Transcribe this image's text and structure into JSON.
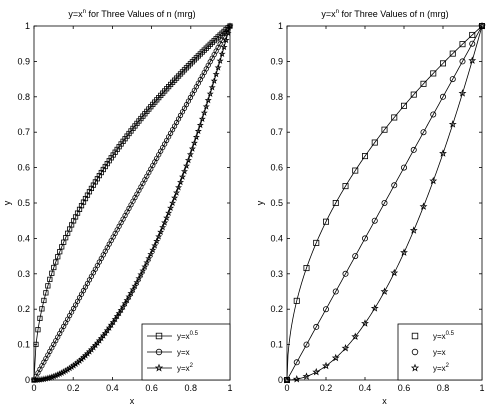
{
  "chart_data": [
    {
      "type": "line",
      "title": {
        "base": "y=x",
        "sup": "n",
        "rest": " for Three Values of n (mrg)"
      },
      "xlabel": "x",
      "ylabel": "y",
      "xlim": [
        0,
        1
      ],
      "ylim": [
        0,
        1
      ],
      "xticks": [
        "0",
        "0.2",
        "0.4",
        "0.6",
        "0.8",
        "1"
      ],
      "yticks": [
        "0",
        "0.1",
        "0.2",
        "0.3",
        "0.4",
        "0.5",
        "0.6",
        "0.7",
        "0.8",
        "0.9",
        "1"
      ],
      "grid": false,
      "legend": "bottom-right",
      "x": [
        0,
        0.0101,
        0.0202,
        0.0303,
        0.0404,
        0.0505,
        0.0606,
        0.0707,
        0.0808,
        0.0909,
        0.101,
        0.1111,
        0.1212,
        0.1313,
        0.1414,
        0.1515,
        0.1616,
        0.1717,
        0.1818,
        0.1919,
        0.202,
        0.2121,
        0.2222,
        0.2323,
        0.2424,
        0.2525,
        0.2626,
        0.2727,
        0.2828,
        0.2929,
        0.303,
        0.3131,
        0.3232,
        0.3333,
        0.3434,
        0.3535,
        0.3636,
        0.3737,
        0.3838,
        0.3939,
        0.404,
        0.4141,
        0.4242,
        0.4343,
        0.4444,
        0.4545,
        0.4646,
        0.4747,
        0.4848,
        0.4949,
        0.5051,
        0.5152,
        0.5253,
        0.5354,
        0.5455,
        0.5556,
        0.5657,
        0.5758,
        0.5859,
        0.596,
        0.6061,
        0.6162,
        0.6263,
        0.6364,
        0.6465,
        0.6566,
        0.6667,
        0.6768,
        0.6869,
        0.697,
        0.7071,
        0.7172,
        0.7273,
        0.7374,
        0.7475,
        0.7576,
        0.7677,
        0.7778,
        0.7879,
        0.798,
        0.8081,
        0.8182,
        0.8283,
        0.8384,
        0.8485,
        0.8586,
        0.8687,
        0.8788,
        0.8889,
        0.899,
        0.9091,
        0.9192,
        0.9293,
        0.9394,
        0.9495,
        0.9596,
        0.9697,
        0.9798,
        0.9899,
        1
      ],
      "series": [
        {
          "name": "y=x",
          "sup": "0.5",
          "marker": "square",
          "y": [
            0,
            0.1005,
            0.1421,
            0.1741,
            0.201,
            0.2247,
            0.2462,
            0.2659,
            0.2843,
            0.3015,
            0.3178,
            0.3333,
            0.3482,
            0.3624,
            0.3761,
            0.3892,
            0.402,
            0.4144,
            0.4264,
            0.4381,
            0.4495,
            0.4606,
            0.4714,
            0.482,
            0.4924,
            0.5025,
            0.5125,
            0.5222,
            0.5318,
            0.5412,
            0.5505,
            0.5596,
            0.5685,
            0.5774,
            0.586,
            0.5946,
            0.603,
            0.6113,
            0.6195,
            0.6276,
            0.6356,
            0.6435,
            0.6513,
            0.659,
            0.6667,
            0.6742,
            0.6816,
            0.689,
            0.6963,
            0.7035,
            0.7107,
            0.7177,
            0.7248,
            0.7317,
            0.7386,
            0.7454,
            0.7521,
            0.7588,
            0.7654,
            0.772,
            0.7785,
            0.785,
            0.7914,
            0.7977,
            0.804,
            0.8103,
            0.8165,
            0.8227,
            0.8288,
            0.8349,
            0.8409,
            0.8469,
            0.8528,
            0.8587,
            0.8646,
            0.8704,
            0.8762,
            0.8819,
            0.8876,
            0.8933,
            0.8989,
            0.9045,
            0.9101,
            0.9156,
            0.9211,
            0.9266,
            0.932,
            0.9374,
            0.9428,
            0.9482,
            0.9535,
            0.9588,
            0.964,
            0.9692,
            0.9744,
            0.9796,
            0.9847,
            0.9899,
            0.9949,
            1
          ]
        },
        {
          "name": "y=x",
          "sup": "",
          "marker": "circle",
          "y": [
            0,
            0.0101,
            0.0202,
            0.0303,
            0.0404,
            0.0505,
            0.0606,
            0.0707,
            0.0808,
            0.0909,
            0.101,
            0.1111,
            0.1212,
            0.1313,
            0.1414,
            0.1515,
            0.1616,
            0.1717,
            0.1818,
            0.1919,
            0.202,
            0.2121,
            0.2222,
            0.2323,
            0.2424,
            0.2525,
            0.2626,
            0.2727,
            0.2828,
            0.2929,
            0.303,
            0.3131,
            0.3232,
            0.3333,
            0.3434,
            0.3535,
            0.3636,
            0.3737,
            0.3838,
            0.3939,
            0.404,
            0.4141,
            0.4242,
            0.4343,
            0.4444,
            0.4545,
            0.4646,
            0.4747,
            0.4848,
            0.4949,
            0.5051,
            0.5152,
            0.5253,
            0.5354,
            0.5455,
            0.5556,
            0.5657,
            0.5758,
            0.5859,
            0.596,
            0.6061,
            0.6162,
            0.6263,
            0.6364,
            0.6465,
            0.6566,
            0.6667,
            0.6768,
            0.6869,
            0.697,
            0.7071,
            0.7172,
            0.7273,
            0.7374,
            0.7475,
            0.7576,
            0.7677,
            0.7778,
            0.7879,
            0.798,
            0.8081,
            0.8182,
            0.8283,
            0.8384,
            0.8485,
            0.8586,
            0.8687,
            0.8788,
            0.8889,
            0.899,
            0.9091,
            0.9192,
            0.9293,
            0.9394,
            0.9495,
            0.9596,
            0.9697,
            0.9798,
            0.9899,
            1
          ]
        },
        {
          "name": "y=x",
          "sup": "2",
          "marker": "star",
          "y": [
            0,
            0.0001,
            0.0004,
            0.0009,
            0.0016,
            0.0026,
            0.0037,
            0.005,
            0.0065,
            0.0083,
            0.0102,
            0.0123,
            0.0147,
            0.0172,
            0.02,
            0.023,
            0.0261,
            0.0295,
            0.0331,
            0.0368,
            0.0408,
            0.045,
            0.0494,
            0.054,
            0.0588,
            0.0638,
            0.069,
            0.0744,
            0.08,
            0.0858,
            0.0918,
            0.098,
            0.1045,
            0.1111,
            0.1179,
            0.125,
            0.1322,
            0.1397,
            0.1473,
            0.1552,
            0.1632,
            0.1715,
            0.18,
            0.1886,
            0.1975,
            0.2066,
            0.2159,
            0.2254,
            0.235,
            0.2449,
            0.2551,
            0.2654,
            0.2759,
            0.2866,
            0.2975,
            0.3086,
            0.32,
            0.3315,
            0.3433,
            0.3552,
            0.3673,
            0.3797,
            0.3922,
            0.405,
            0.4179,
            0.4311,
            0.4444,
            0.458,
            0.4718,
            0.4858,
            0.5,
            0.5144,
            0.5289,
            0.5437,
            0.5587,
            0.5739,
            0.5894,
            0.605,
            0.6208,
            0.6369,
            0.6531,
            0.6694,
            0.686,
            0.7029,
            0.7199,
            0.7372,
            0.7546,
            0.7723,
            0.7901,
            0.8082,
            0.8264,
            0.8449,
            0.8636,
            0.8825,
            0.9015,
            0.9208,
            0.9403,
            0.96,
            0.9799,
            1
          ]
        }
      ]
    },
    {
      "type": "line",
      "title": {
        "base": "y=x",
        "sup": "n",
        "rest": " for Three Values of n (mrg)"
      },
      "xlabel": "x",
      "ylabel": "y",
      "xlim": [
        0,
        1
      ],
      "ylim": [
        0,
        1
      ],
      "xticks": [
        "0",
        "0.2",
        "0.4",
        "0.6",
        "0.8",
        "1"
      ],
      "yticks": [
        "0",
        "0.1",
        "0.2",
        "0.3",
        "0.4",
        "0.5",
        "0.6",
        "0.7",
        "0.8",
        "0.9",
        "1"
      ],
      "grid": false,
      "legend": "bottom-right",
      "x": [
        0,
        0.05,
        0.1,
        0.15,
        0.2,
        0.25,
        0.3,
        0.35,
        0.4,
        0.45,
        0.5,
        0.55,
        0.6,
        0.65,
        0.7,
        0.75,
        0.8,
        0.85,
        0.9,
        0.95,
        1
      ],
      "series": [
        {
          "name": "y=x",
          "sup": "0.5",
          "marker": "square",
          "y": [
            0,
            0.2236,
            0.3162,
            0.3873,
            0.4472,
            0.5,
            0.5477,
            0.5916,
            0.6325,
            0.6708,
            0.7071,
            0.7416,
            0.7746,
            0.8062,
            0.8367,
            0.866,
            0.8944,
            0.922,
            0.9487,
            0.9747,
            1
          ]
        },
        {
          "name": "y=x",
          "sup": "",
          "marker": "circle",
          "y": [
            0,
            0.05,
            0.1,
            0.15,
            0.2,
            0.25,
            0.3,
            0.35,
            0.4,
            0.45,
            0.5,
            0.55,
            0.6,
            0.65,
            0.7,
            0.75,
            0.8,
            0.85,
            0.9,
            0.95,
            1
          ]
        },
        {
          "name": "y=x",
          "sup": "2",
          "marker": "star",
          "y": [
            0,
            0.0025,
            0.01,
            0.0225,
            0.04,
            0.0625,
            0.09,
            0.1225,
            0.16,
            0.2025,
            0.25,
            0.3025,
            0.36,
            0.4225,
            0.49,
            0.5625,
            0.64,
            0.7225,
            0.81,
            0.9025,
            1
          ]
        }
      ],
      "fine_curves": true
    }
  ]
}
